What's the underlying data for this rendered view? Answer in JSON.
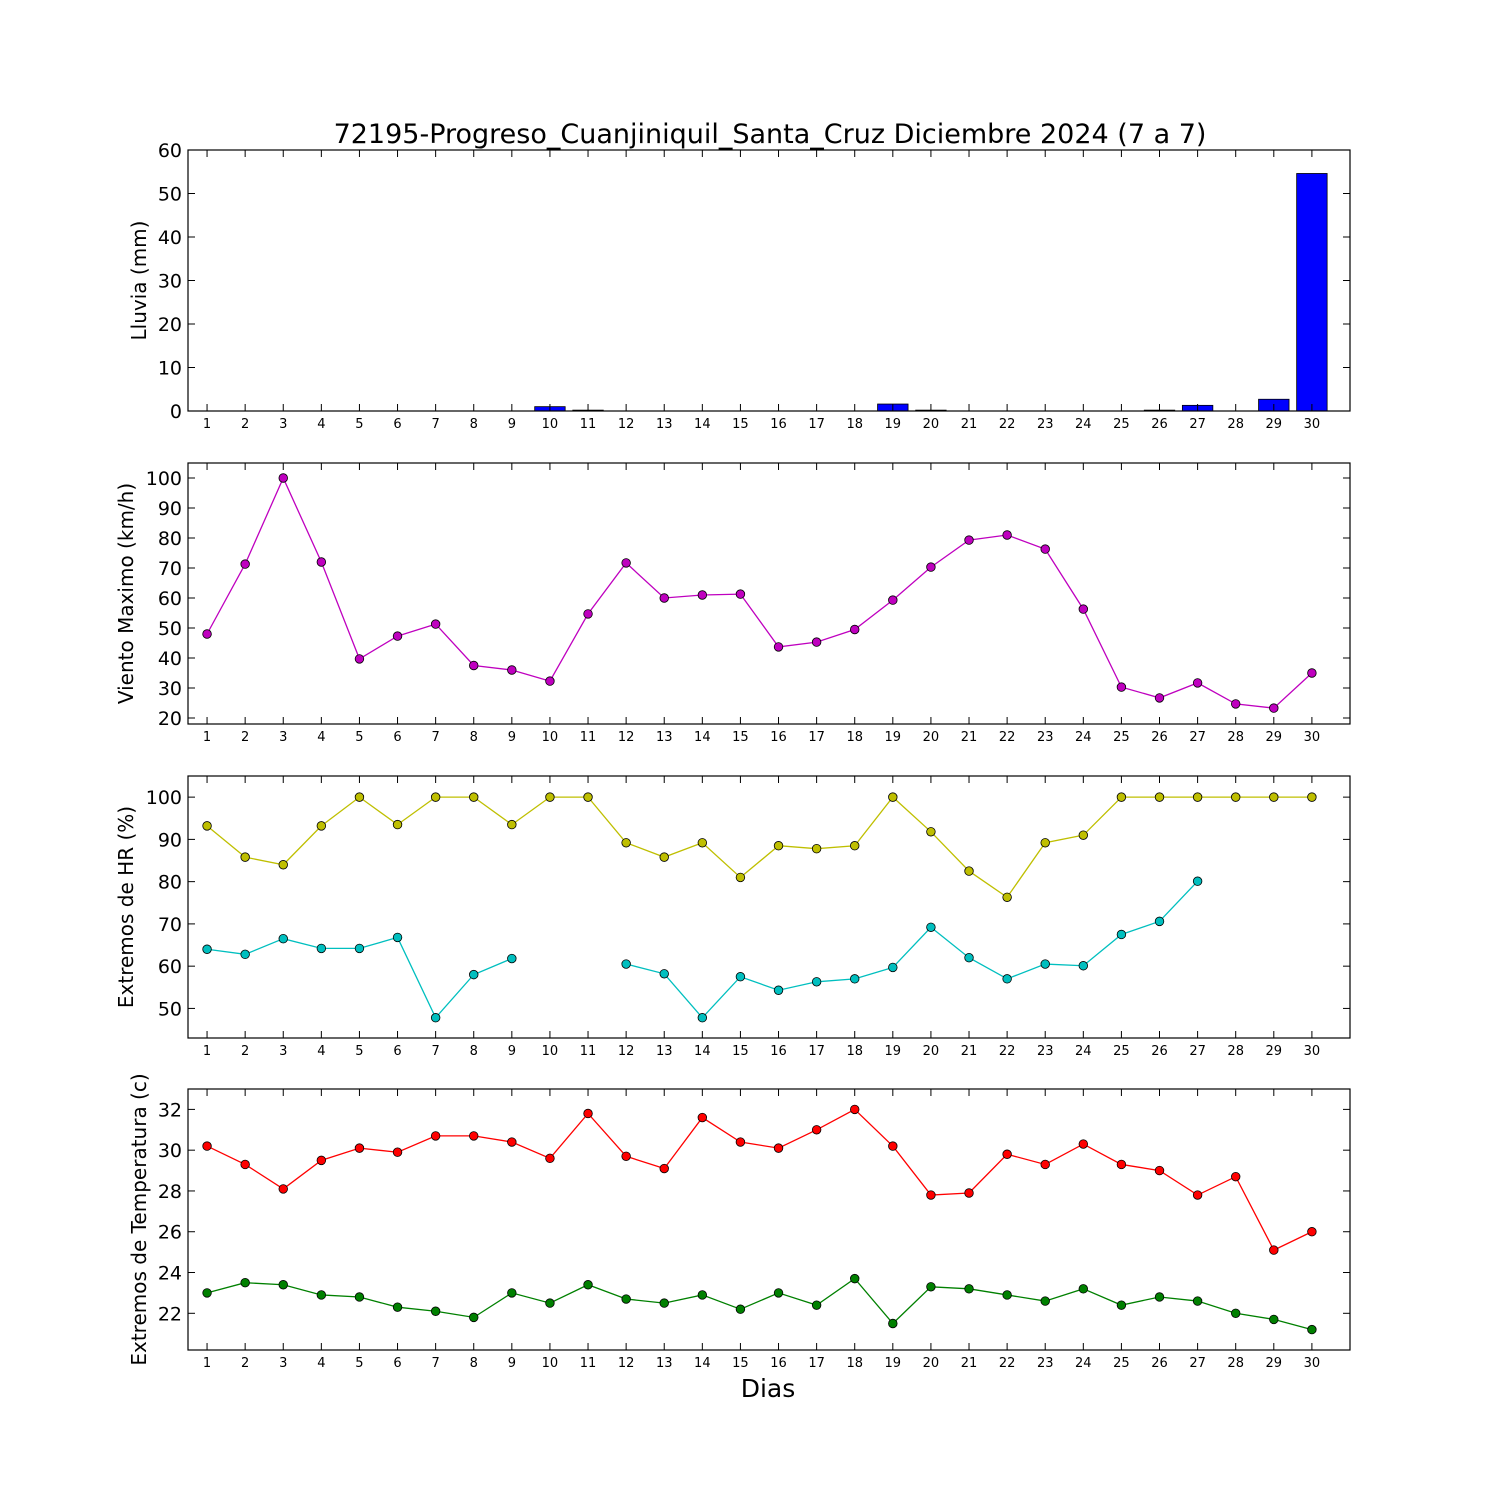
{
  "figure": {
    "title": "72195-Progreso_Cuanjiniquil_Santa_Cruz Diciembre 2024  (7 a 7)",
    "xlabel": "Dias"
  },
  "chart_data": [
    {
      "type": "bar",
      "ylabel": "Lluvia (mm)",
      "x": [
        1,
        2,
        3,
        4,
        5,
        6,
        7,
        8,
        9,
        10,
        11,
        12,
        13,
        14,
        15,
        16,
        17,
        18,
        19,
        20,
        21,
        22,
        23,
        24,
        25,
        26,
        27,
        28,
        29,
        30
      ],
      "ylim": [
        0,
        60
      ],
      "yticks": [
        0,
        10,
        20,
        30,
        40,
        50,
        60
      ],
      "series": [
        {
          "color": "#0000ff",
          "values": [
            0,
            0,
            0,
            0,
            0,
            0,
            0,
            0,
            0,
            1.0,
            0.2,
            0,
            0,
            0,
            0,
            0,
            0,
            0,
            1.6,
            0.2,
            0,
            0,
            0,
            0,
            0,
            0.2,
            1.3,
            0,
            2.7,
            54.6
          ]
        }
      ]
    },
    {
      "type": "line",
      "ylabel": "Viento Maximo (km/h)",
      "x": [
        1,
        2,
        3,
        4,
        5,
        6,
        7,
        8,
        9,
        10,
        11,
        12,
        13,
        14,
        15,
        16,
        17,
        18,
        19,
        20,
        21,
        22,
        23,
        24,
        25,
        26,
        27,
        28,
        29,
        30
      ],
      "ylim": [
        18,
        105
      ],
      "yticks": [
        20,
        30,
        40,
        50,
        60,
        70,
        80,
        90,
        100
      ],
      "series": [
        {
          "color": "#bf00bf",
          "values": [
            48,
            71.3,
            100,
            72,
            39.7,
            47.3,
            51.3,
            37.5,
            36,
            32.3,
            54.7,
            71.7,
            60,
            61,
            61.3,
            43.7,
            45.3,
            49.5,
            59.3,
            70.3,
            79.3,
            81,
            76.3,
            56.3,
            30.3,
            26.7,
            31.7,
            24.7,
            23.3,
            35
          ]
        }
      ]
    },
    {
      "type": "line",
      "ylabel": "Extremos de HR (%)",
      "x": [
        1,
        2,
        3,
        4,
        5,
        6,
        7,
        8,
        9,
        10,
        11,
        12,
        13,
        14,
        15,
        16,
        17,
        18,
        19,
        20,
        21,
        22,
        23,
        24,
        25,
        26,
        27,
        28,
        29,
        30
      ],
      "ylim": [
        43,
        105
      ],
      "yticks": [
        50,
        60,
        70,
        80,
        90,
        100
      ],
      "series": [
        {
          "color": "#bfbf00",
          "values": [
            93.2,
            85.8,
            84,
            93.2,
            100,
            93.5,
            100,
            100,
            93.5,
            100,
            100,
            89.2,
            85.8,
            89.2,
            81,
            88.5,
            87.8,
            88.5,
            100,
            91.8,
            82.5,
            76.3,
            89.2,
            91,
            100,
            100,
            100,
            100,
            100,
            100
          ]
        },
        {
          "color": "#00bfbf",
          "values": [
            64,
            62.8,
            66.5,
            64.2,
            64.2,
            66.8,
            47.8,
            58,
            61.8,
            null,
            null,
            60.5,
            58.2,
            47.8,
            57.5,
            54.3,
            56.3,
            57,
            59.7,
            69.2,
            62,
            57,
            60.5,
            60.1,
            67.5,
            70.6,
            80.1,
            null,
            null,
            null
          ]
        }
      ]
    },
    {
      "type": "line",
      "ylabel": "Extremos de Temperatura (c)",
      "x": [
        1,
        2,
        3,
        4,
        5,
        6,
        7,
        8,
        9,
        10,
        11,
        12,
        13,
        14,
        15,
        16,
        17,
        18,
        19,
        20,
        21,
        22,
        23,
        24,
        25,
        26,
        27,
        28,
        29,
        30
      ],
      "ylim": [
        20.2,
        33
      ],
      "yticks": [
        22,
        24,
        26,
        28,
        30,
        32
      ],
      "series": [
        {
          "color": "#ff0000",
          "values": [
            30.2,
            29.3,
            28.1,
            29.5,
            30.1,
            29.9,
            30.7,
            30.7,
            30.4,
            29.6,
            31.8,
            29.7,
            29.1,
            31.6,
            30.4,
            30.1,
            31,
            32,
            30.2,
            27.8,
            27.9,
            29.8,
            29.3,
            30.3,
            29.3,
            29,
            27.8,
            28.7,
            25.1,
            26
          ]
        },
        {
          "color": "#008000",
          "values": [
            23,
            23.5,
            23.4,
            22.9,
            22.8,
            22.3,
            22.1,
            21.8,
            23,
            22.5,
            23.4,
            22.7,
            22.5,
            22.9,
            22.2,
            23,
            22.4,
            23.7,
            21.5,
            23.3,
            23.2,
            22.9,
            22.6,
            23.2,
            22.4,
            22.8,
            22.6,
            22,
            21.7,
            21.2
          ]
        }
      ]
    }
  ]
}
